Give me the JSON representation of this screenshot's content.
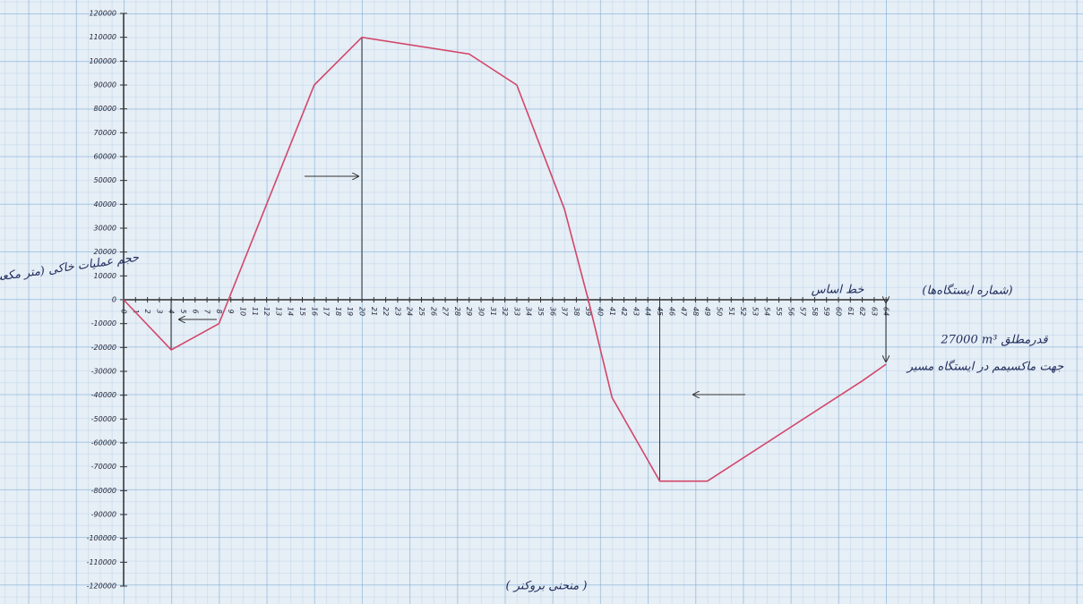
{
  "chart_data": {
    "type": "line",
    "title": "( منحنی بروکنر )",
    "y_label": "حجم عملیات خاکی (متر مکعب)",
    "x_label": "(شماره ایستگاه‌ها)",
    "annotations": [
      "خط اساس",
      "27000 m³ قدرمطلق",
      "جهت ماکسیمم در ایستگاه مسیر"
    ],
    "x": [
      0,
      4,
      8,
      16,
      20,
      29,
      33,
      37,
      39,
      41,
      45,
      49,
      62,
      64
    ],
    "series": [
      {
        "name": "منحنی بروکنر",
        "color": "#d2476a",
        "values": [
          0,
          -21000,
          -10000,
          90000,
          110000,
          103000,
          90000,
          38000,
          0,
          -41000,
          -76000,
          -76000,
          -34000,
          -27000
        ]
      }
    ],
    "xlim": [
      0,
      64
    ],
    "xticks": [
      0,
      1,
      2,
      3,
      4,
      5,
      6,
      7,
      8,
      9,
      10,
      11,
      12,
      13,
      14,
      15,
      16,
      17,
      18,
      19,
      20,
      21,
      22,
      23,
      24,
      25,
      26,
      27,
      28,
      29,
      30,
      31,
      32,
      33,
      34,
      35,
      36,
      37,
      38,
      39,
      40,
      41,
      42,
      43,
      44,
      45,
      46,
      47,
      48,
      49,
      50,
      51,
      52,
      53,
      54,
      55,
      56,
      57,
      58,
      59,
      60,
      61,
      62,
      63,
      64
    ],
    "ylim": [
      -120000,
      120000
    ],
    "yticks": [
      120000,
      110000,
      100000,
      90000,
      80000,
      70000,
      60000,
      50000,
      40000,
      30000,
      20000,
      10000,
      0,
      -10000,
      -20000,
      -30000,
      -40000,
      -50000,
      -60000,
      -70000,
      -80000,
      -90000,
      -100000,
      -110000,
      -120000
    ],
    "grid": true
  }
}
